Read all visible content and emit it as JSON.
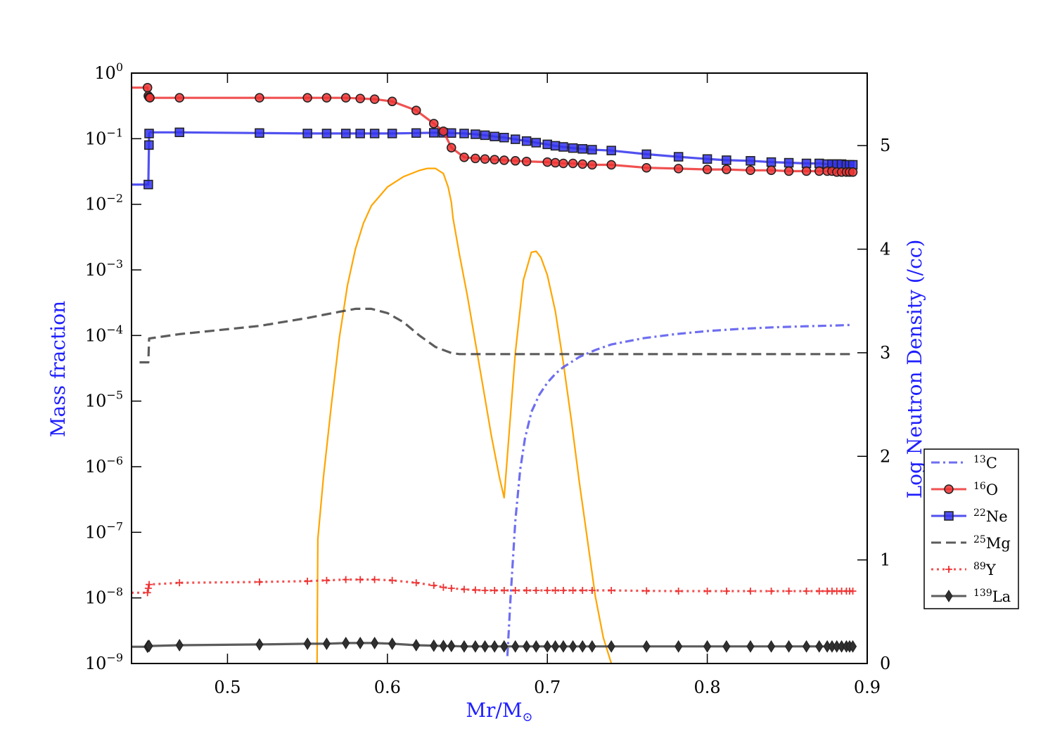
{
  "chart_data": {
    "type": "line",
    "xlabel": "Mr/M",
    "xlabel_symbol": "⊙",
    "ylabel_left": "Mass fraction",
    "ylabel_right": "Log Neutron Density (/cc)",
    "x_range": [
      0.44,
      0.9
    ],
    "y_left_scale": "log",
    "y_left_range": [
      1e-09,
      1
    ],
    "y_right_range": [
      0,
      5.7
    ],
    "x_ticks": [
      {
        "v": 0.5,
        "label": "0.5"
      },
      {
        "v": 0.6,
        "label": "0.6"
      },
      {
        "v": 0.7,
        "label": "0.7"
      },
      {
        "v": 0.8,
        "label": "0.8"
      },
      {
        "v": 0.9,
        "label": "0.9"
      }
    ],
    "y_left_ticks": [
      {
        "exp": 0,
        "base": "10",
        "sup": "0"
      },
      {
        "exp": -1,
        "base": "10",
        "sup": "−1"
      },
      {
        "exp": -2,
        "base": "10",
        "sup": "−2"
      },
      {
        "exp": -3,
        "base": "10",
        "sup": "−3"
      },
      {
        "exp": -4,
        "base": "10",
        "sup": "−4"
      },
      {
        "exp": -5,
        "base": "10",
        "sup": "−5"
      },
      {
        "exp": -6,
        "base": "10",
        "sup": "−6"
      },
      {
        "exp": -7,
        "base": "10",
        "sup": "−7"
      },
      {
        "exp": -8,
        "base": "10",
        "sup": "−8"
      },
      {
        "exp": -9,
        "base": "10",
        "sup": "−9"
      }
    ],
    "y_right_ticks": [
      {
        "v": 0,
        "label": "0"
      },
      {
        "v": 1,
        "label": "1"
      },
      {
        "v": 2,
        "label": "2"
      },
      {
        "v": 3,
        "label": "3"
      },
      {
        "v": 4,
        "label": "4"
      },
      {
        "v": 5,
        "label": "5"
      }
    ],
    "legend_position": "right",
    "series": [
      {
        "name": "13C",
        "mass": "13",
        "element": "C",
        "axis": "left",
        "color": "#5555ee",
        "dash": "dashdot",
        "marker": "none",
        "x": [
          0.675,
          0.677,
          0.68,
          0.683,
          0.686,
          0.69,
          0.695,
          0.7,
          0.705,
          0.71,
          0.72,
          0.73,
          0.74,
          0.76,
          0.78,
          0.8,
          0.82,
          0.84,
          0.86,
          0.88,
          0.89
        ],
        "y": [
          1.3e-09,
          1e-08,
          1.5e-07,
          9e-07,
          2.7e-06,
          6.8e-06,
          1.25e-05,
          1.9e-05,
          2.6e-05,
          3.3e-05,
          4.7e-05,
          6e-05,
          7.3e-05,
          9.1e-05,
          0.000105,
          0.000117,
          0.000126,
          0.000133,
          0.000138,
          0.000142,
          0.000145
        ]
      },
      {
        "name": "16O",
        "mass": "16",
        "element": "O",
        "axis": "left",
        "color": "#ee3333",
        "dash": "solid",
        "marker": "circle",
        "x": [
          0.44,
          0.45,
          0.4505,
          0.451,
          0.4515,
          0.47,
          0.52,
          0.55,
          0.562,
          0.574,
          0.583,
          0.592,
          0.603,
          0.618,
          0.629,
          0.635,
          0.64,
          0.648,
          0.655,
          0.661,
          0.667,
          0.673,
          0.68,
          0.687,
          0.7,
          0.705,
          0.71,
          0.716,
          0.722,
          0.728,
          0.74,
          0.762,
          0.782,
          0.8,
          0.812,
          0.827,
          0.84,
          0.851,
          0.862,
          0.87,
          0.875,
          0.878,
          0.881,
          0.884,
          0.887,
          0.889,
          0.891
        ],
        "y": [
          0.6,
          0.6,
          0.45,
          0.43,
          0.42,
          0.42,
          0.42,
          0.42,
          0.42,
          0.42,
          0.41,
          0.4,
          0.37,
          0.27,
          0.17,
          0.13,
          0.073,
          0.052,
          0.05,
          0.049,
          0.048,
          0.047,
          0.046,
          0.045,
          0.044,
          0.043,
          0.042,
          0.042,
          0.041,
          0.04,
          0.04,
          0.036,
          0.035,
          0.034,
          0.034,
          0.033,
          0.033,
          0.032,
          0.032,
          0.032,
          0.032,
          0.032,
          0.031,
          0.031,
          0.031,
          0.031,
          0.031
        ],
        "markers": [
          0.45,
          0.4505,
          0.451,
          0.4515,
          0.47,
          0.52,
          0.55,
          0.562,
          0.574,
          0.583,
          0.592,
          0.603,
          0.618,
          0.629,
          0.635,
          0.64,
          0.648,
          0.655,
          0.661,
          0.667,
          0.673,
          0.68,
          0.687,
          0.7,
          0.705,
          0.71,
          0.716,
          0.722,
          0.728,
          0.74,
          0.762,
          0.782,
          0.8,
          0.812,
          0.827,
          0.84,
          0.851,
          0.862,
          0.87,
          0.875,
          0.878,
          0.881,
          0.884,
          0.887,
          0.889,
          0.891
        ]
      },
      {
        "name": "22Ne",
        "mass": "22",
        "element": "Ne",
        "axis": "left",
        "color": "#3333ee",
        "dash": "solid",
        "marker": "square",
        "x": [
          0.44,
          0.45,
          0.4505,
          0.4509,
          0.451,
          0.4515,
          0.47,
          0.52,
          0.55,
          0.562,
          0.574,
          0.583,
          0.592,
          0.603,
          0.618,
          0.629,
          0.635,
          0.64,
          0.648,
          0.655,
          0.661,
          0.667,
          0.673,
          0.68,
          0.687,
          0.693,
          0.7,
          0.705,
          0.71,
          0.716,
          0.722,
          0.728,
          0.74,
          0.762,
          0.782,
          0.8,
          0.812,
          0.827,
          0.84,
          0.851,
          0.862,
          0.87,
          0.875,
          0.878,
          0.881,
          0.884,
          0.887,
          0.889,
          0.891
        ],
        "y": [
          0.02,
          0.02,
          0.02,
          0.08,
          0.12,
          0.125,
          0.125,
          0.122,
          0.12,
          0.12,
          0.12,
          0.12,
          0.12,
          0.12,
          0.122,
          0.123,
          0.123,
          0.122,
          0.12,
          0.117,
          0.113,
          0.108,
          0.104,
          0.098,
          0.092,
          0.087,
          0.082,
          0.078,
          0.075,
          0.072,
          0.07,
          0.068,
          0.066,
          0.058,
          0.053,
          0.049,
          0.047,
          0.046,
          0.044,
          0.043,
          0.042,
          0.042,
          0.041,
          0.041,
          0.041,
          0.041,
          0.04,
          0.04,
          0.04
        ],
        "markers": [
          0.4505,
          0.4509,
          0.451,
          0.47,
          0.52,
          0.55,
          0.562,
          0.574,
          0.583,
          0.592,
          0.603,
          0.618,
          0.629,
          0.635,
          0.64,
          0.648,
          0.655,
          0.661,
          0.667,
          0.673,
          0.68,
          0.687,
          0.693,
          0.7,
          0.705,
          0.71,
          0.716,
          0.722,
          0.728,
          0.74,
          0.762,
          0.782,
          0.8,
          0.812,
          0.827,
          0.84,
          0.851,
          0.862,
          0.87,
          0.875,
          0.878,
          0.881,
          0.884,
          0.887,
          0.889,
          0.891
        ]
      },
      {
        "name": "25Mg",
        "mass": "25",
        "element": "Mg",
        "axis": "left",
        "color": "#404040",
        "dash": "dashed",
        "marker": "none",
        "x": [
          0.445,
          0.4505,
          0.451,
          0.47,
          0.52,
          0.55,
          0.57,
          0.58,
          0.59,
          0.6,
          0.61,
          0.62,
          0.63,
          0.64,
          0.645,
          0.66,
          0.7,
          0.75,
          0.8,
          0.85,
          0.891
        ],
        "y": [
          3.9e-05,
          3.9e-05,
          9e-05,
          0.000105,
          0.00014,
          0.000185,
          0.00023,
          0.000255,
          0.000255,
          0.00022,
          0.00016,
          0.0001,
          6.7e-05,
          5.4e-05,
          5.2e-05,
          5.2e-05,
          5.2e-05,
          5.2e-05,
          5.2e-05,
          5.2e-05,
          5.2e-05
        ]
      },
      {
        "name": "89Y",
        "mass": "89",
        "element": "Y",
        "axis": "left",
        "color": "#ee3333",
        "dash": "dotted",
        "marker": "plus",
        "x": [
          0.44,
          0.45,
          0.4505,
          0.451,
          0.47,
          0.52,
          0.55,
          0.562,
          0.574,
          0.583,
          0.592,
          0.603,
          0.618,
          0.629,
          0.635,
          0.64,
          0.648,
          0.655,
          0.661,
          0.667,
          0.673,
          0.68,
          0.687,
          0.693,
          0.7,
          0.705,
          0.71,
          0.716,
          0.722,
          0.728,
          0.74,
          0.762,
          0.782,
          0.8,
          0.812,
          0.827,
          0.84,
          0.851,
          0.862,
          0.87,
          0.875,
          0.878,
          0.881,
          0.884,
          0.887,
          0.889,
          0.891
        ],
        "y": [
          1.2e-08,
          1.2e-08,
          1.4e-08,
          1.6e-08,
          1.7e-08,
          1.75e-08,
          1.8e-08,
          1.85e-08,
          1.9e-08,
          1.9e-08,
          1.9e-08,
          1.85e-08,
          1.7e-08,
          1.55e-08,
          1.45e-08,
          1.4e-08,
          1.35e-08,
          1.32e-08,
          1.3e-08,
          1.3e-08,
          1.3e-08,
          1.3e-08,
          1.3e-08,
          1.3e-08,
          1.3e-08,
          1.3e-08,
          1.3e-08,
          1.3e-08,
          1.3e-08,
          1.3e-08,
          1.3e-08,
          1.28e-08,
          1.27e-08,
          1.27e-08,
          1.27e-08,
          1.27e-08,
          1.27e-08,
          1.27e-08,
          1.27e-08,
          1.27e-08,
          1.27e-08,
          1.27e-08,
          1.27e-08,
          1.27e-08,
          1.27e-08,
          1.27e-08,
          1.27e-08
        ],
        "markers": [
          0.45,
          0.4505,
          0.451,
          0.47,
          0.52,
          0.55,
          0.562,
          0.574,
          0.583,
          0.592,
          0.603,
          0.618,
          0.629,
          0.635,
          0.64,
          0.648,
          0.655,
          0.661,
          0.667,
          0.673,
          0.68,
          0.687,
          0.693,
          0.7,
          0.705,
          0.71,
          0.716,
          0.722,
          0.728,
          0.74,
          0.762,
          0.782,
          0.8,
          0.812,
          0.827,
          0.84,
          0.851,
          0.862,
          0.87,
          0.875,
          0.878,
          0.881,
          0.884,
          0.887,
          0.889,
          0.891
        ]
      },
      {
        "name": "139La",
        "mass": "139",
        "element": "La",
        "axis": "left",
        "color": "#404040",
        "dash": "solid",
        "marker": "diamond",
        "x": [
          0.44,
          0.45,
          0.4505,
          0.451,
          0.47,
          0.52,
          0.55,
          0.562,
          0.574,
          0.583,
          0.592,
          0.603,
          0.618,
          0.629,
          0.635,
          0.64,
          0.648,
          0.655,
          0.661,
          0.667,
          0.673,
          0.68,
          0.687,
          0.693,
          0.7,
          0.705,
          0.71,
          0.716,
          0.722,
          0.728,
          0.74,
          0.762,
          0.782,
          0.8,
          0.812,
          0.827,
          0.84,
          0.851,
          0.862,
          0.87,
          0.875,
          0.878,
          0.881,
          0.884,
          0.887,
          0.889,
          0.891
        ],
        "y": [
          1.8e-09,
          1.8e-09,
          1.85e-09,
          1.85e-09,
          1.9e-09,
          1.95e-09,
          2e-09,
          2e-09,
          2.05e-09,
          2.05e-09,
          2.05e-09,
          2e-09,
          1.9e-09,
          1.87e-09,
          1.85e-09,
          1.85e-09,
          1.82e-09,
          1.82e-09,
          1.82e-09,
          1.82e-09,
          1.82e-09,
          1.82e-09,
          1.82e-09,
          1.82e-09,
          1.82e-09,
          1.82e-09,
          1.82e-09,
          1.82e-09,
          1.82e-09,
          1.82e-09,
          1.82e-09,
          1.82e-09,
          1.82e-09,
          1.82e-09,
          1.82e-09,
          1.82e-09,
          1.82e-09,
          1.82e-09,
          1.82e-09,
          1.82e-09,
          1.82e-09,
          1.82e-09,
          1.82e-09,
          1.82e-09,
          1.82e-09,
          1.82e-09,
          1.82e-09
        ],
        "markers": [
          0.45,
          0.4505,
          0.451,
          0.47,
          0.52,
          0.55,
          0.562,
          0.574,
          0.583,
          0.592,
          0.603,
          0.618,
          0.629,
          0.635,
          0.64,
          0.648,
          0.655,
          0.661,
          0.667,
          0.673,
          0.68,
          0.687,
          0.693,
          0.7,
          0.705,
          0.71,
          0.716,
          0.722,
          0.728,
          0.74,
          0.762,
          0.782,
          0.8,
          0.812,
          0.827,
          0.84,
          0.851,
          0.862,
          0.87,
          0.875,
          0.878,
          0.881,
          0.884,
          0.887,
          0.889,
          0.891
        ]
      },
      {
        "name": "",
        "axis": "right",
        "color": "#ffa500",
        "dash": "solid",
        "marker": "none",
        "x": [
          0.556,
          0.5565,
          0.56,
          0.565,
          0.57,
          0.575,
          0.58,
          0.585,
          0.59,
          0.6,
          0.61,
          0.62,
          0.625,
          0.63,
          0.635,
          0.638,
          0.64,
          0.641,
          0.645,
          0.65,
          0.655,
          0.66,
          0.665,
          0.67,
          0.673,
          0.676,
          0.68,
          0.685,
          0.69,
          0.693,
          0.696,
          0.7,
          0.705,
          0.71,
          0.715,
          0.72,
          0.725,
          0.73,
          0.735,
          0.74
        ],
        "y": [
          0.0,
          1.2,
          1.8,
          2.5,
          3.15,
          3.65,
          4.0,
          4.25,
          4.42,
          4.6,
          4.7,
          4.76,
          4.78,
          4.78,
          4.73,
          4.6,
          4.45,
          4.3,
          3.95,
          3.55,
          3.1,
          2.65,
          2.2,
          1.8,
          1.6,
          2.2,
          3.0,
          3.7,
          3.97,
          3.98,
          3.92,
          3.75,
          3.4,
          2.9,
          2.35,
          1.75,
          1.2,
          0.65,
          0.25,
          0.0
        ]
      }
    ]
  }
}
